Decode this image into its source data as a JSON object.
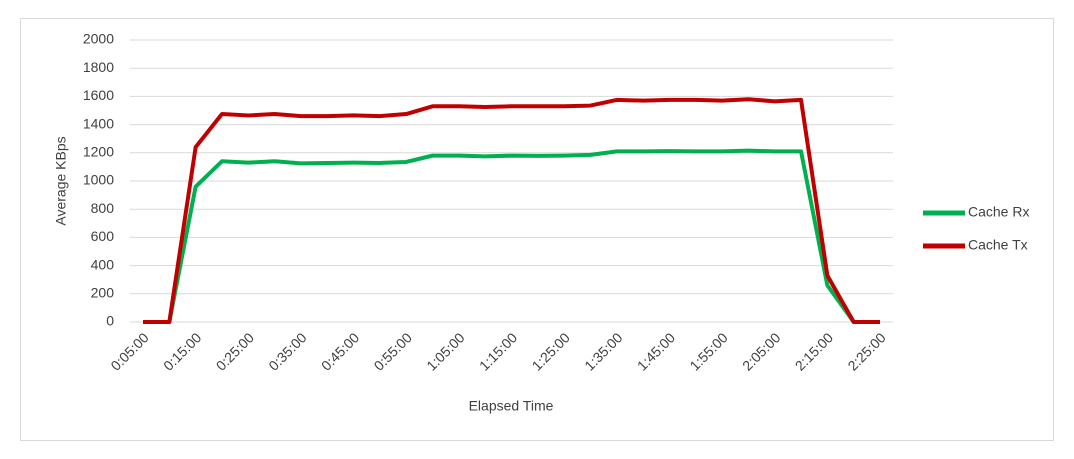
{
  "chart_data": {
    "type": "line",
    "xlabel": "Elapsed Time",
    "ylabel": "Average KBps",
    "categories": [
      "0:05:00",
      null,
      "0:15:00",
      null,
      "0:25:00",
      null,
      "0:35:00",
      null,
      "0:45:00",
      null,
      "0:55:00",
      null,
      "1:05:00",
      null,
      "1:15:00",
      null,
      "1:25:00",
      null,
      "1:35:00",
      null,
      "1:45:00",
      null,
      "1:55:00",
      null,
      "2:05:00",
      null,
      "2:15:00",
      null,
      "2:25:00"
    ],
    "series": [
      {
        "name": "Cache Rx",
        "color": "#00b050",
        "values": [
          0,
          0,
          960,
          1140,
          1130,
          1140,
          1125,
          1128,
          1130,
          1128,
          1135,
          1180,
          1180,
          1175,
          1180,
          1178,
          1180,
          1185,
          1210,
          1210,
          1212,
          1210,
          1210,
          1215,
          1210,
          1210,
          260,
          0,
          0
        ]
      },
      {
        "name": "Cache Tx",
        "color": "#c00000",
        "values": [
          0,
          0,
          1240,
          1475,
          1465,
          1475,
          1460,
          1460,
          1465,
          1460,
          1475,
          1530,
          1530,
          1525,
          1530,
          1530,
          1530,
          1535,
          1575,
          1570,
          1575,
          1575,
          1570,
          1580,
          1565,
          1575,
          330,
          0,
          0
        ]
      }
    ],
    "ylim": [
      0,
      2000
    ],
    "yticks": [
      0,
      200,
      400,
      600,
      800,
      1000,
      1200,
      1400,
      1600,
      1800,
      2000
    ],
    "grid": true,
    "legend": "right"
  }
}
